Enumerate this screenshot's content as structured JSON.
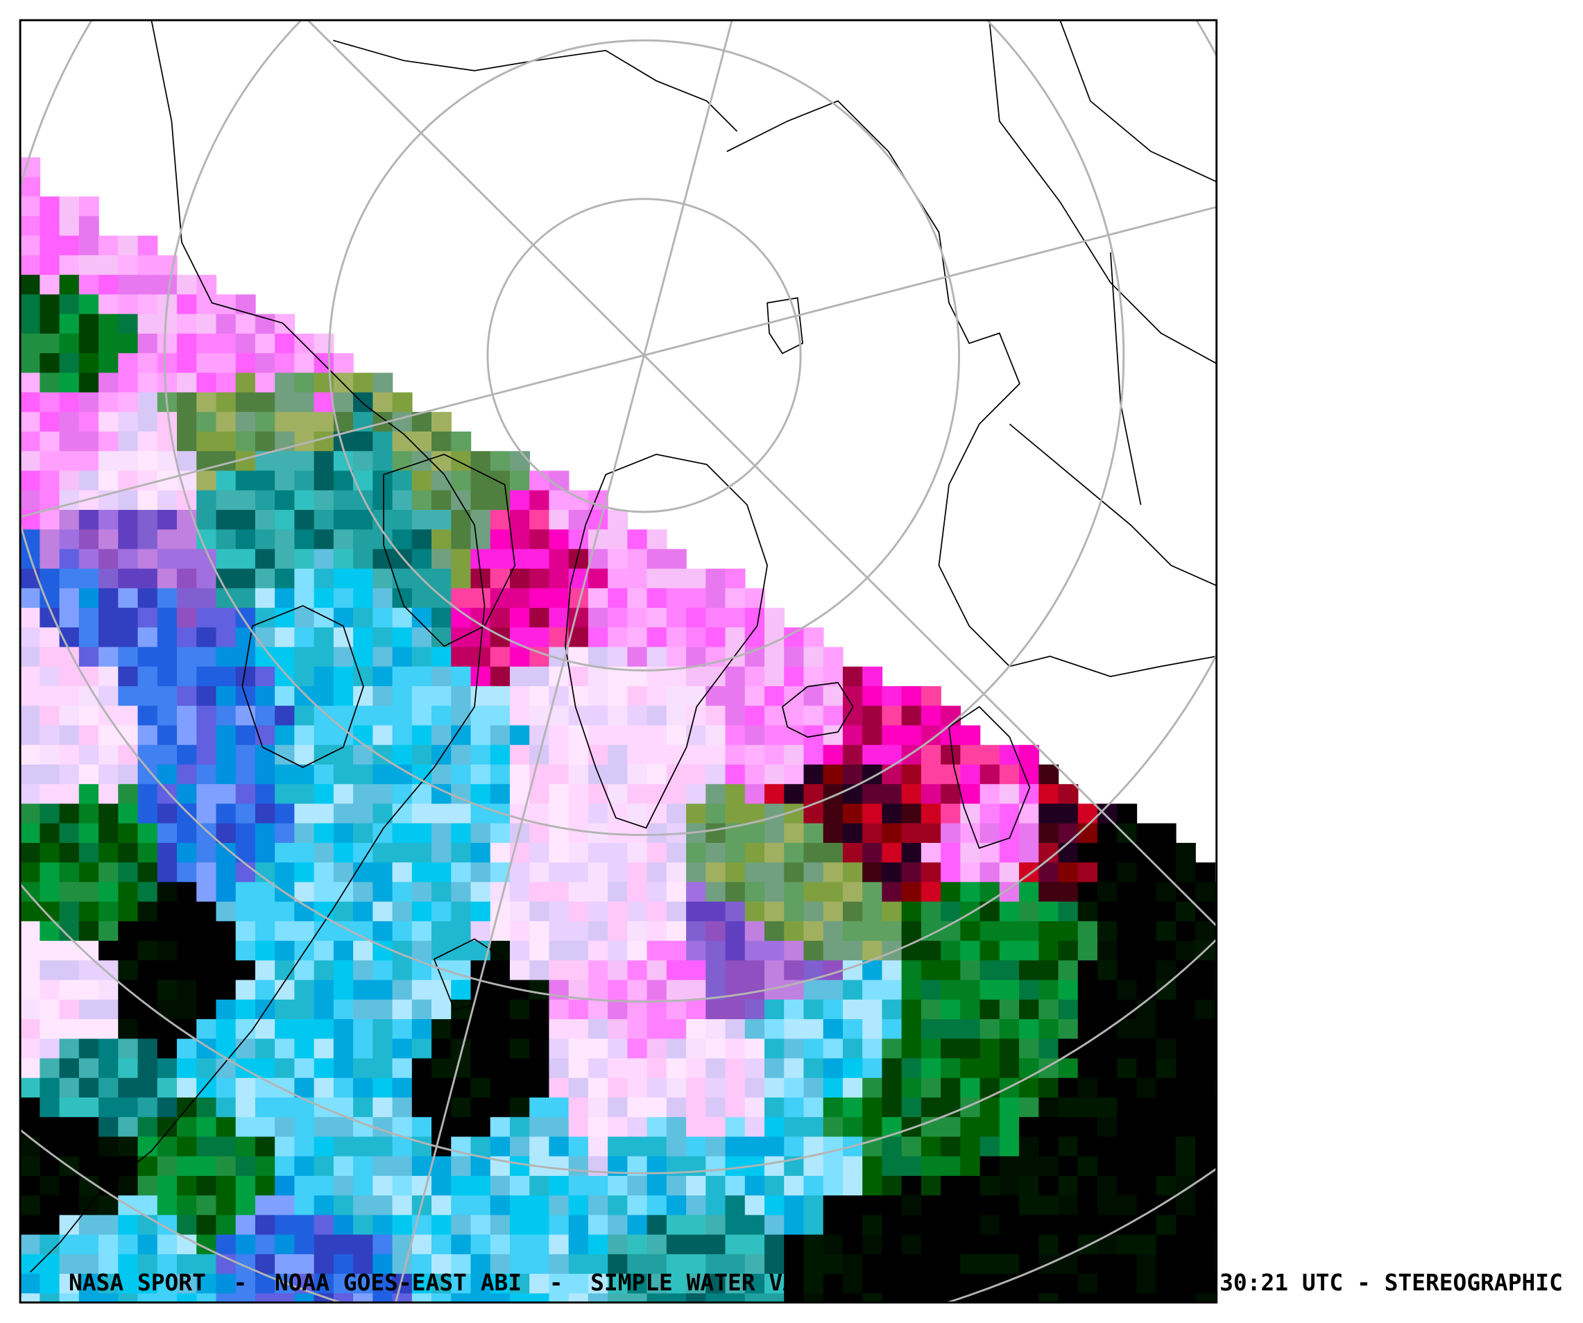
{
  "caption": {
    "left": "NASA SPORT  -  NOAA GOES-EAST ABI  -  SIMPLE WATER VA",
    "right": "30:21 UTC - STEREOGRAPHIC"
  }
}
